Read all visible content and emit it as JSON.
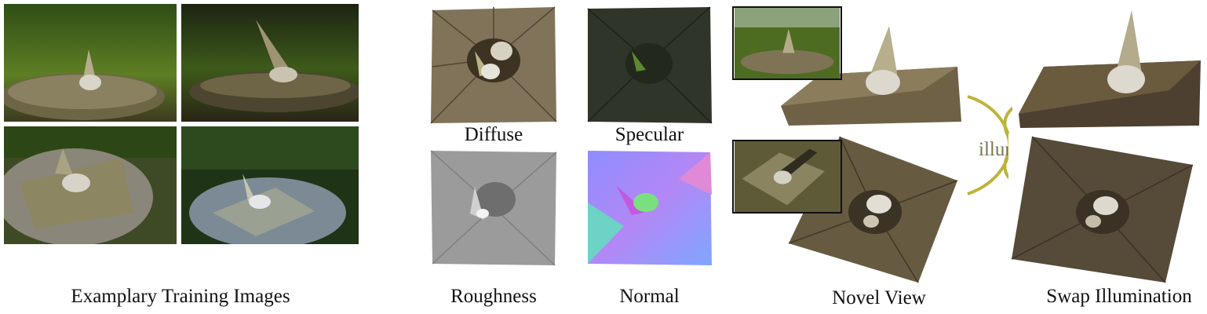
{
  "captions": {
    "training": "Examplary Training Images",
    "roughness": "Roughness",
    "normal": "Normal",
    "novel_view": "Novel View",
    "swap_illumination": "Swap Illumination"
  },
  "material_labels": {
    "diffuse": "Diffuse",
    "specular": "Specular"
  },
  "arrow_label": "illum.",
  "colors": {
    "arrow": "#bdb43a",
    "arrow_text": "#7a7450",
    "background": "#ffffff"
  }
}
